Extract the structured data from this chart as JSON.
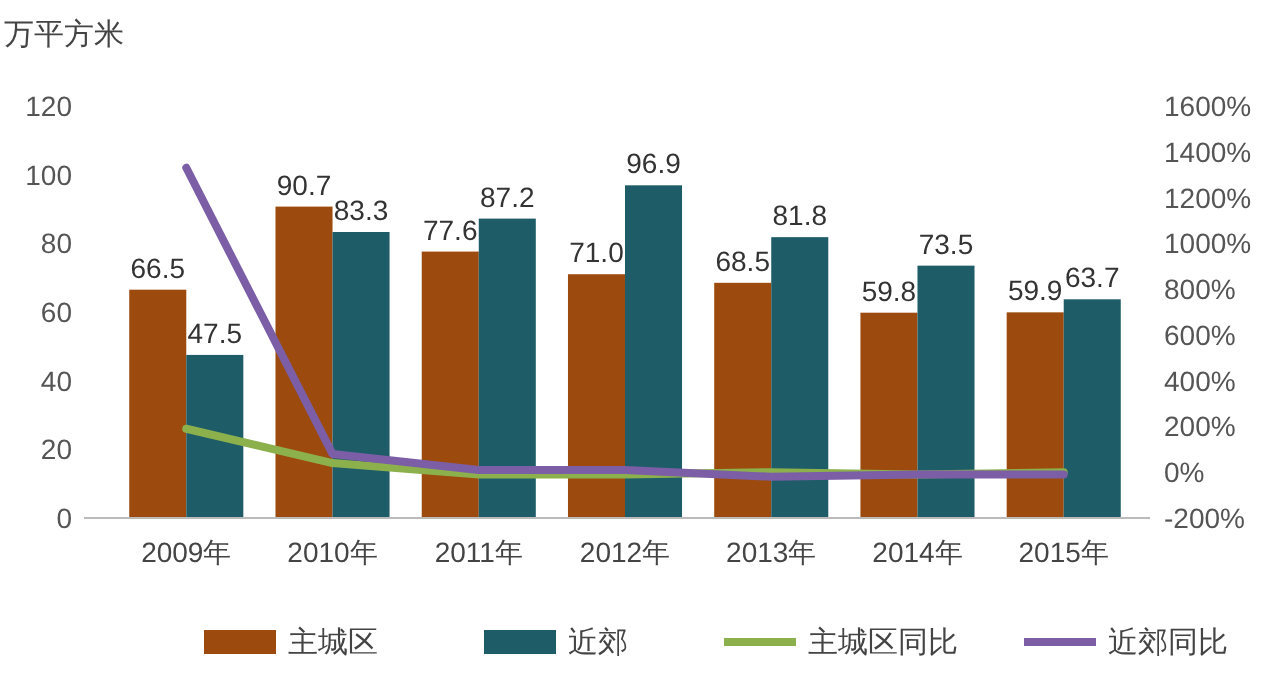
{
  "chart_data": {
    "type": "bar",
    "ylabel": "万平方米",
    "categories": [
      "2009年",
      "2010年",
      "2011年",
      "2012年",
      "2013年",
      "2014年",
      "2015年"
    ],
    "series": [
      {
        "name": "主城区",
        "color": "#9c4a0e",
        "values": [
          66.5,
          90.7,
          77.6,
          71.0,
          68.5,
          59.8,
          59.9
        ],
        "value_labels": [
          "66.5",
          "90.7",
          "77.6",
          "71.0",
          "68.5",
          "59.8",
          "59.9"
        ]
      },
      {
        "name": "近郊",
        "color": "#1e5c68",
        "values": [
          47.5,
          83.3,
          87.2,
          96.9,
          81.8,
          73.5,
          63.7
        ],
        "value_labels": [
          "47.5",
          "83.3",
          "87.2",
          "96.9",
          "81.8",
          "73.5",
          "63.7"
        ]
      },
      {
        "name": "主城区同比",
        "type": "line",
        "axis": "y2",
        "color": "#8cb04c",
        "values": [
          190,
          40,
          -10,
          -10,
          0,
          -10,
          0
        ]
      },
      {
        "name": "近郊同比",
        "type": "line",
        "axis": "y2",
        "color": "#7b5ea6",
        "values": [
          1330,
          80,
          10,
          10,
          -20,
          -10,
          -10
        ]
      }
    ],
    "ylim": [
      0,
      120
    ],
    "yticks": [
      0,
      20,
      40,
      60,
      80,
      100,
      120
    ],
    "y2lim": [
      -200,
      1600
    ],
    "y2ticks": [
      {
        "value": -200,
        "label": "-200%"
      },
      {
        "value": 0,
        "label": "0%"
      },
      {
        "value": 200,
        "label": "200%"
      },
      {
        "value": 400,
        "label": "400%"
      },
      {
        "value": 600,
        "label": "600%"
      },
      {
        "value": 800,
        "label": "800%"
      },
      {
        "value": 1000,
        "label": "1000%"
      },
      {
        "value": 1200,
        "label": "1200%"
      },
      {
        "value": 1400,
        "label": "1400%"
      },
      {
        "value": 1600,
        "label": "1600%"
      }
    ],
    "grid": false,
    "legend": "bottom",
    "marker": "none",
    "line_style": "solid"
  }
}
